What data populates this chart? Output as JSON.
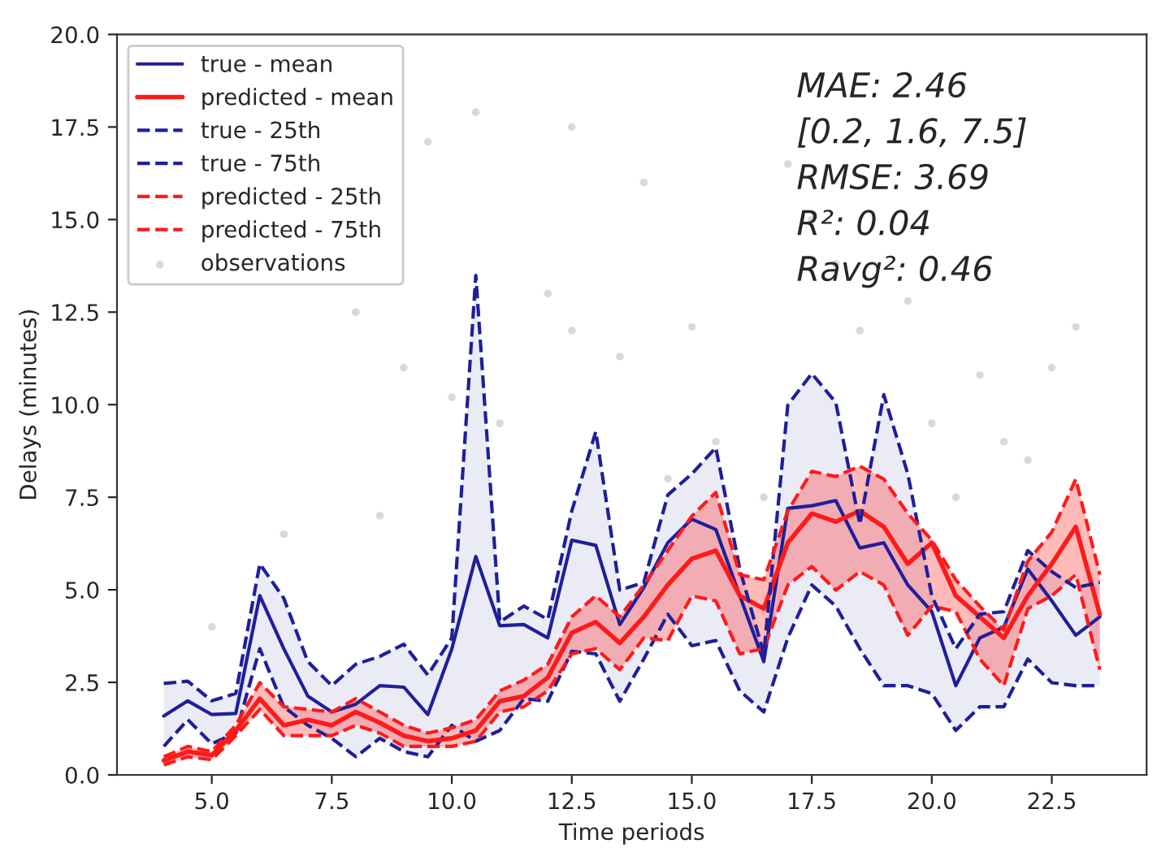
{
  "chart_data": {
    "type": "line",
    "xlabel": "Time periods",
    "ylabel": "Delays (minutes)",
    "x": [
      4,
      4.5,
      5,
      5.5,
      6,
      6.5,
      7,
      7.5,
      8,
      8.5,
      9,
      9.5,
      10,
      10.5,
      11,
      11.5,
      12,
      12.5,
      13,
      13.5,
      14,
      14.5,
      15,
      15.5,
      16,
      16.5,
      17,
      17.5,
      18,
      18.5,
      19,
      19.5,
      20,
      20.5,
      21,
      21.5,
      22,
      22.5,
      23,
      23.5
    ],
    "series": [
      {
        "name": "true - mean",
        "color": "#1f1f9a",
        "line_style": "solid",
        "values": [
          1.59,
          2.0,
          1.63,
          1.66,
          4.84,
          3.41,
          2.13,
          1.7,
          1.91,
          2.41,
          2.37,
          1.63,
          3.4,
          5.9,
          4.03,
          4.06,
          3.7,
          6.34,
          6.2,
          4.06,
          5.06,
          6.27,
          6.91,
          6.63,
          4.84,
          3.06,
          7.2,
          7.27,
          7.41,
          6.13,
          6.27,
          5.13,
          4.41,
          2.41,
          3.7,
          3.99,
          5.56,
          4.7,
          3.77,
          4.27
        ],
        "lower": [
          0.77,
          1.49,
          0.84,
          1.13,
          3.41,
          1.84,
          1.34,
          0.99,
          0.49,
          0.99,
          0.63,
          0.49,
          1.34,
          0.91,
          1.2,
          2.06,
          1.99,
          3.34,
          3.27,
          1.99,
          3.13,
          4.34,
          3.49,
          3.63,
          2.27,
          1.7,
          3.7,
          5.13,
          4.56,
          3.41,
          2.41,
          2.41,
          2.2,
          1.2,
          1.84,
          1.84,
          3.13,
          2.49,
          2.41,
          2.41
        ],
        "upper": [
          2.47,
          2.53,
          2.0,
          2.2,
          5.7,
          4.77,
          3.06,
          2.41,
          2.99,
          3.2,
          3.53,
          2.7,
          3.7,
          13.49,
          4.13,
          4.56,
          4.2,
          7.13,
          9.27,
          4.99,
          5.2,
          7.56,
          8.13,
          8.84,
          5.56,
          3.27,
          9.99,
          10.84,
          10.06,
          6.77,
          10.27,
          8.13,
          4.84,
          3.41,
          4.34,
          4.41,
          6.06,
          5.49,
          5.06,
          5.2
        ]
      },
      {
        "name": "predicted - mean",
        "color": "#ff1a1a",
        "line_style": "solid",
        "values": [
          0.39,
          0.63,
          0.53,
          1.2,
          2.06,
          1.34,
          1.49,
          1.34,
          1.7,
          1.41,
          1.06,
          0.91,
          0.99,
          1.2,
          1.99,
          2.13,
          2.63,
          3.84,
          4.13,
          3.56,
          4.27,
          5.13,
          5.84,
          6.06,
          4.84,
          4.49,
          6.27,
          7.06,
          6.84,
          7.13,
          6.7,
          5.7,
          6.27,
          4.84,
          4.27,
          3.7,
          4.84,
          5.7,
          6.7,
          4.34
        ],
        "lower": [
          0.27,
          0.49,
          0.41,
          1.06,
          1.77,
          1.06,
          1.06,
          1.06,
          1.34,
          1.13,
          0.77,
          0.77,
          0.77,
          0.91,
          1.7,
          1.84,
          2.27,
          3.27,
          3.41,
          2.84,
          3.7,
          3.63,
          4.84,
          4.7,
          3.27,
          3.41,
          5.13,
          5.63,
          4.99,
          5.49,
          5.13,
          3.77,
          4.56,
          4.41,
          3.13,
          2.41,
          4.49,
          4.84,
          5.41,
          2.84
        ],
        "upper": [
          0.49,
          0.77,
          0.63,
          1.34,
          2.49,
          1.84,
          1.77,
          1.7,
          2.06,
          1.7,
          1.34,
          1.13,
          1.27,
          1.49,
          2.27,
          2.56,
          2.99,
          4.27,
          4.84,
          4.27,
          5.13,
          6.06,
          6.99,
          7.63,
          5.41,
          5.27,
          7.13,
          8.2,
          8.06,
          8.34,
          7.99,
          7.06,
          6.34,
          5.27,
          4.56,
          3.91,
          5.77,
          6.56,
          7.99,
          5.41
        ]
      },
      {
        "name": "true - 25th",
        "color": "#1f1f9a",
        "line_style": "dashed",
        "values": [
          0.77,
          1.49,
          0.84,
          1.13,
          3.41,
          1.84,
          1.34,
          0.99,
          0.49,
          0.99,
          0.63,
          0.49,
          1.34,
          0.91,
          1.2,
          2.06,
          1.99,
          3.34,
          3.27,
          1.99,
          3.13,
          4.34,
          3.49,
          3.63,
          2.27,
          1.7,
          3.7,
          5.13,
          4.56,
          3.41,
          2.41,
          2.41,
          2.2,
          1.2,
          1.84,
          1.84,
          3.13,
          2.49,
          2.41,
          2.41
        ]
      },
      {
        "name": "true - 75th",
        "color": "#1f1f9a",
        "line_style": "dashed",
        "values": [
          2.47,
          2.53,
          2.0,
          2.2,
          5.7,
          4.77,
          3.06,
          2.41,
          2.99,
          3.2,
          3.53,
          2.7,
          3.7,
          13.49,
          4.13,
          4.56,
          4.2,
          7.13,
          9.27,
          4.99,
          5.2,
          7.56,
          8.13,
          8.84,
          5.56,
          3.27,
          9.99,
          10.84,
          10.06,
          6.77,
          10.27,
          8.13,
          4.84,
          3.41,
          4.34,
          4.41,
          6.06,
          5.49,
          5.06,
          5.2
        ]
      },
      {
        "name": "predicted - 25th",
        "color": "#ff1a1a",
        "line_style": "dashed",
        "values": [
          0.27,
          0.49,
          0.41,
          1.06,
          1.77,
          1.06,
          1.06,
          1.06,
          1.34,
          1.13,
          0.77,
          0.77,
          0.77,
          0.91,
          1.7,
          1.84,
          2.27,
          3.27,
          3.41,
          2.84,
          3.7,
          3.63,
          4.84,
          4.7,
          3.27,
          3.41,
          5.13,
          5.63,
          4.99,
          5.49,
          5.13,
          3.77,
          4.56,
          4.41,
          3.13,
          2.41,
          4.49,
          4.84,
          5.41,
          2.84
        ]
      },
      {
        "name": "predicted - 75th",
        "color": "#ff1a1a",
        "line_style": "dashed",
        "values": [
          0.49,
          0.77,
          0.63,
          1.34,
          2.49,
          1.84,
          1.77,
          1.7,
          2.06,
          1.7,
          1.34,
          1.13,
          1.27,
          1.49,
          2.27,
          2.56,
          2.99,
          4.27,
          4.84,
          4.27,
          5.13,
          6.06,
          6.99,
          7.63,
          5.41,
          5.27,
          7.13,
          8.2,
          8.06,
          8.34,
          7.99,
          7.06,
          6.34,
          5.27,
          4.56,
          3.91,
          5.77,
          6.56,
          7.99,
          5.41
        ]
      },
      {
        "name": "observations",
        "type": "scatter",
        "color": "#d9d9d9",
        "x": [
          5,
          6.5,
          8,
          9,
          9.5,
          10.5,
          11,
          12,
          12.5,
          13.5,
          14,
          15,
          15.5,
          16.5,
          17,
          18,
          18.5,
          19.5,
          20.5,
          21,
          21.5,
          22.5,
          23,
          8.5,
          10,
          12.5,
          14.5,
          17.5,
          20,
          22
        ],
        "values": [
          4.0,
          6.5,
          12.5,
          11.0,
          17.1,
          17.9,
          9.5,
          13.0,
          17.5,
          11.3,
          16.0,
          12.1,
          9.0,
          7.5,
          16.5,
          13.8,
          12.0,
          12.8,
          7.5,
          10.8,
          9.0,
          11.0,
          12.1,
          7.0,
          10.2,
          12.0,
          8.0,
          15.0,
          9.5,
          8.5
        ]
      }
    ],
    "xlim": [
      3.025,
      24.475
    ],
    "ylim": [
      0,
      20
    ],
    "xticks": [
      {
        "value": 5,
        "label": "5.0"
      },
      {
        "value": 7.5,
        "label": "7.5"
      },
      {
        "value": 10,
        "label": "10.0"
      },
      {
        "value": 12.5,
        "label": "12.5"
      },
      {
        "value": 15,
        "label": "15.0"
      },
      {
        "value": 17.5,
        "label": "17.5"
      },
      {
        "value": 20,
        "label": "20.0"
      },
      {
        "value": 22.5,
        "label": "22.5"
      }
    ],
    "yticks": [
      {
        "value": 0,
        "label": "0.0"
      },
      {
        "value": 2.5,
        "label": "2.5"
      },
      {
        "value": 5,
        "label": "5.0"
      },
      {
        "value": 7.5,
        "label": "7.5"
      },
      {
        "value": 10,
        "label": "10.0"
      },
      {
        "value": 12.5,
        "label": "12.5"
      },
      {
        "value": 15,
        "label": "15.0"
      },
      {
        "value": 17.5,
        "label": "17.5"
      },
      {
        "value": 20,
        "label": "20.0"
      }
    ],
    "annotations": [
      "MAE: 2.46",
      "[0.2, 1.6, 7.5]",
      "RMSE: 3.69",
      "R²: 0.04",
      "Ravg²: 0.46"
    ],
    "legend": "top left",
    "grid": false
  }
}
